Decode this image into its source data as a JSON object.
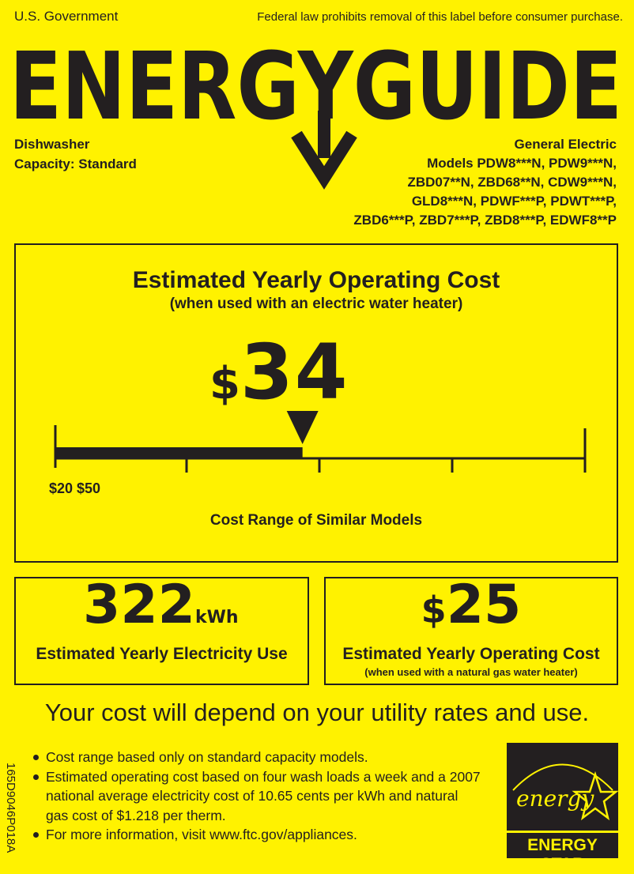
{
  "header": {
    "gov": "U.S. Government",
    "notice": "Federal law prohibits removal of this label before consumer purchase.",
    "logo": "ENERGYGUIDE"
  },
  "product": {
    "type": "Dishwasher",
    "capacity": "Capacity: Standard",
    "brand": "General Electric",
    "models": [
      "Models PDW8***N, PDW9***N,",
      "ZBD07**N, ZBD68**N, CDW9***N,",
      "GLD8***N, PDWF***P, PDWT***P,",
      "ZBD6***P, ZBD7***P, ZBD8***P, EDWF8**P"
    ]
  },
  "main": {
    "title": "Estimated Yearly Operating Cost",
    "subtitle": "(when used with an electric water heater)",
    "cost_symbol": "$",
    "cost_value": "34",
    "range_labels": "$20 $50",
    "range_min": 20,
    "range_max": 50,
    "range_caption": "Cost Range of Similar Models"
  },
  "electricity": {
    "value": "322",
    "unit": "kWh",
    "label": "Estimated Yearly Electricity Use"
  },
  "gas": {
    "symbol": "$",
    "value": "25",
    "label": "Estimated Yearly Operating Cost",
    "sublabel": "(when used with a natural gas water heater)"
  },
  "disclaimer": "Your cost will depend on your utility rates and use.",
  "notes": [
    "Cost range based only on standard capacity models.",
    "Estimated operating cost based on four wash loads a week and a 2007 national average electricity cost of 10.65 cents per kWh and natural gas cost of $1.218 per therm.",
    "For more information, visit www.ftc.gov/appliances."
  ],
  "side_code": "165D9046P018A",
  "energy_star": {
    "script": "energy",
    "label": "ENERGY STAR"
  },
  "colors": {
    "background": "#fff200",
    "ink": "#231f20"
  }
}
